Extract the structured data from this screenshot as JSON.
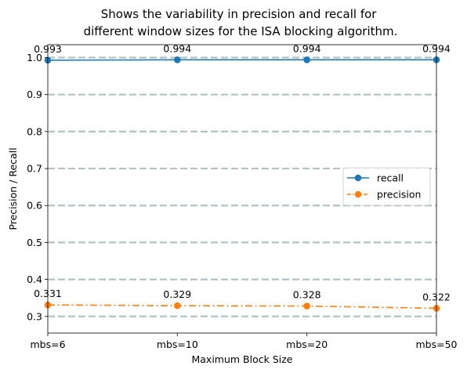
{
  "chart_data": {
    "type": "line",
    "title": "Shows the variability in precision and recall for\ndifferent window sizes for the ISA blocking algorithm.",
    "xlabel": "Maximum Block Size",
    "ylabel": "Precision / Recall",
    "categories": [
      "mbs=6",
      "mbs=10",
      "mbs=20",
      "mbs=50"
    ],
    "ylim": [
      0.255,
      1.035
    ],
    "yticks": [
      0.3,
      0.4,
      0.5,
      0.6,
      0.7,
      0.8,
      0.9,
      1.0
    ],
    "ytick_labels": [
      "0.3",
      "0.4",
      "0.5",
      "0.6",
      "0.7",
      "0.8",
      "0.9",
      "1.0"
    ],
    "grid": "horizontal dashed",
    "legend_position": "center-right",
    "series": [
      {
        "name": "recall",
        "values": [
          0.993,
          0.994,
          0.994,
          0.994
        ],
        "labels": [
          "0.993",
          "0.994",
          "0.994",
          "0.994"
        ],
        "color": "#1f77b4",
        "style": "solid"
      },
      {
        "name": "precision",
        "values": [
          0.331,
          0.329,
          0.328,
          0.322
        ],
        "labels": [
          "0.331",
          "0.329",
          "0.328",
          "0.322"
        ],
        "color": "#ff7f0e",
        "style": "dashdot"
      }
    ],
    "colors": {
      "grid": "#b0c4c4"
    }
  }
}
